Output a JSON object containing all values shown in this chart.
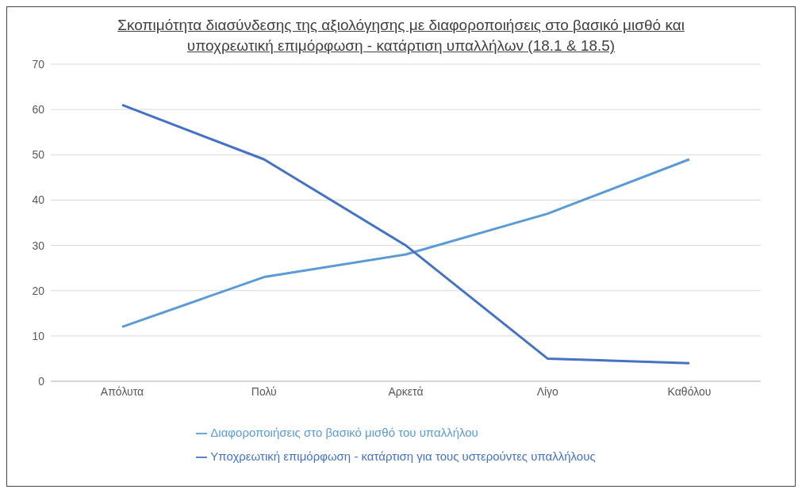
{
  "chart_data": {
    "type": "line",
    "title": "Σκοπιμότητα διασύνδεσης της αξιολόγησης με διαφοροποιήσεις  στο βασικό μισθό και υποχρεωτική επιμόρφωση - κατάρτιση υπαλλήλων (18.1 & 18.5)",
    "categories": [
      "Απόλυτα",
      "Πολύ",
      "Αρκετά",
      "Λίγο",
      "Καθόλου"
    ],
    "series": [
      {
        "name": "Διαφοροποιήσεις στο βασικό μισθό του υπαλλήλου",
        "color": "#5b9bd5",
        "values": [
          12,
          23,
          28,
          37,
          49
        ]
      },
      {
        "name": "Υποχρεωτική επιμόρφωση - κατάρτιση για τους υστερούντες υπαλλήλους",
        "color": "#4472c4",
        "values": [
          61,
          49,
          30,
          5,
          4
        ]
      }
    ],
    "ylim": [
      0,
      70
    ],
    "yticks": [
      0,
      10,
      20,
      30,
      40,
      50,
      60,
      70
    ],
    "grid": "y",
    "legend": "bottom",
    "marker": "none",
    "line_style": "solid"
  }
}
